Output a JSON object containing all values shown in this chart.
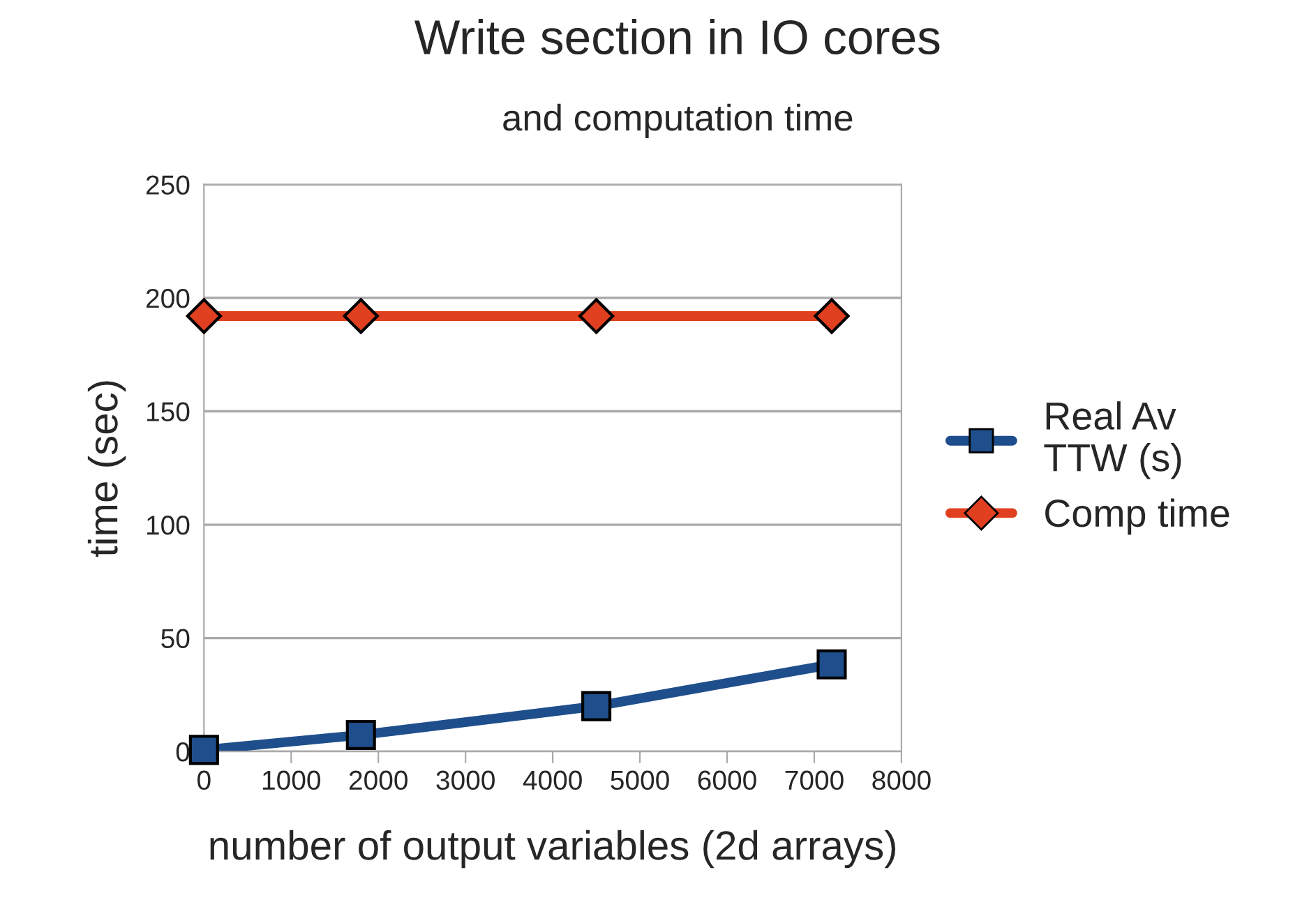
{
  "chart_data": {
    "type": "line",
    "title": "Write section in IO cores",
    "subtitle": "and computation time",
    "xlabel": "number of output variables (2d arrays)",
    "ylabel": "time (sec)",
    "x": [
      0,
      1800,
      4500,
      7200
    ],
    "series": [
      {
        "name": "Real Av\nTTW (s)",
        "color": "#1f4e8c",
        "values": [
          0.7,
          7.3,
          20,
          38.4
        ],
        "marker": "square"
      },
      {
        "name": "Comp time",
        "color": "#e04020",
        "values": [
          192,
          192,
          192,
          192
        ],
        "marker": "diamond"
      }
    ],
    "xlim": [
      0,
      8000
    ],
    "xticks": [
      0,
      1000,
      2000,
      3000,
      4000,
      5000,
      6000,
      7000,
      8000
    ],
    "ylim": [
      0,
      250
    ],
    "yticks": [
      0,
      50,
      100,
      150,
      200,
      250
    ],
    "grid": "y",
    "legend": "right",
    "line_style": "solid"
  }
}
